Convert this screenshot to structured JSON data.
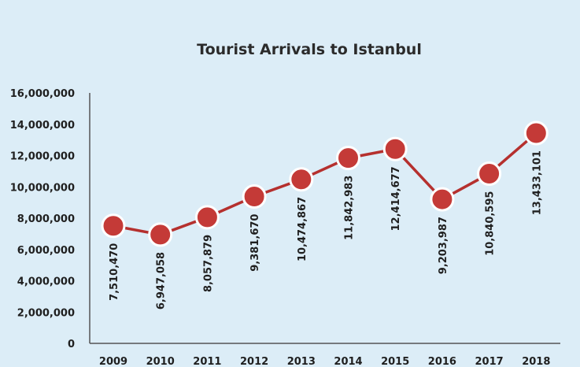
{
  "chart_data": {
    "type": "line",
    "title": "Tourist  Arrivals to Istanbul",
    "xlabel": "",
    "ylabel": "",
    "categories": [
      "2009",
      "2010",
      "2011",
      "2012",
      "2013",
      "2014",
      "2015",
      "2016",
      "2017",
      "2018"
    ],
    "values": [
      7510470,
      6947058,
      8057879,
      9381670,
      10474867,
      11842983,
      12414677,
      9203987,
      10840595,
      13433101
    ],
    "data_labels": [
      "7,510,470",
      "6,947,058",
      "8,057,879",
      "9,381,670",
      "10,474,867",
      "11,842,983",
      "12,414,677",
      "9,203,987",
      "10,840,595",
      "13,433,101"
    ],
    "ylim": [
      0,
      16000000
    ],
    "y_ticks": [
      0,
      2000000,
      4000000,
      6000000,
      8000000,
      10000000,
      12000000,
      14000000,
      16000000
    ],
    "y_tick_labels": [
      "0",
      "2,000,000",
      "4,000,000",
      "6,000,000",
      "8,000,000",
      "10,000,000",
      "12,000,000",
      "14,000,000",
      "16,000,000"
    ],
    "grid": false,
    "legend": "none",
    "colors": {
      "background": "#dcedf7",
      "line": "#b5302e",
      "marker_fill": "#c43a37",
      "marker_stroke": "#ffffff",
      "text": "#1f1f1f",
      "axis": "#555555"
    }
  }
}
